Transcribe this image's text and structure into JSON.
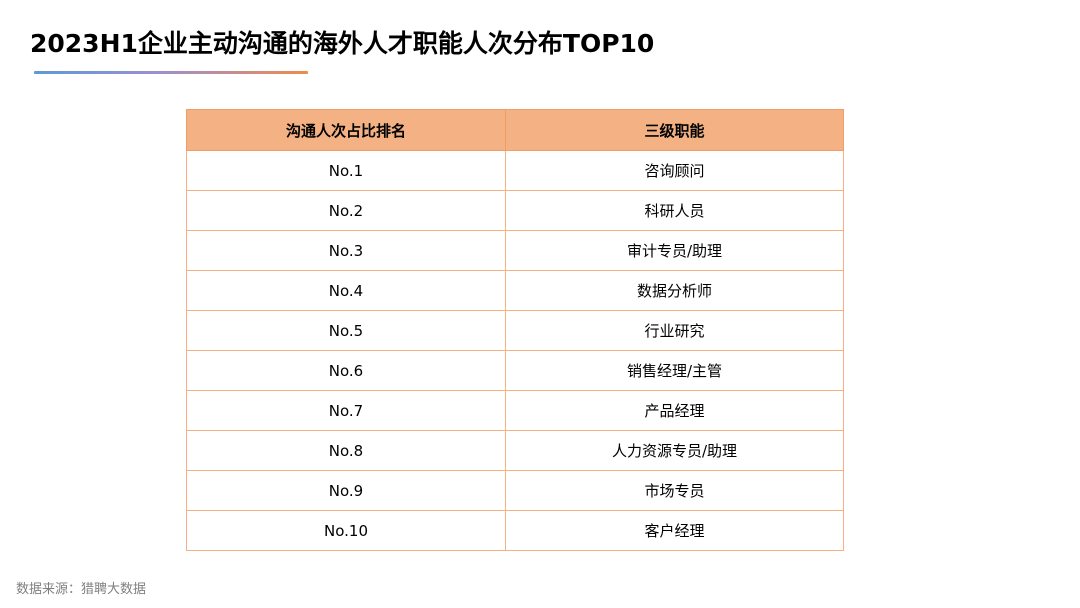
{
  "page": {
    "title": "2023H1企业主动沟通的海外人才职能人次分布TOP10",
    "source": "数据来源：猎聘大数据"
  },
  "colors": {
    "header_fill": "#f4b183",
    "table_border": "#f4b183",
    "underline_gradient": [
      "#5b9bd5",
      "#f08a4b"
    ]
  },
  "table": {
    "headers": [
      "沟通人次占比排名",
      "三级职能"
    ],
    "rows": [
      {
        "rank": "No.1",
        "function": "咨询顾问"
      },
      {
        "rank": "No.2",
        "function": "科研人员"
      },
      {
        "rank": "No.3",
        "function": "审计专员/助理"
      },
      {
        "rank": "No.4",
        "function": "数据分析师"
      },
      {
        "rank": "No.5",
        "function": "行业研究"
      },
      {
        "rank": "No.6",
        "function": "销售经理/主管"
      },
      {
        "rank": "No.7",
        "function": "产品经理"
      },
      {
        "rank": "No.8",
        "function": "人力资源专员/助理"
      },
      {
        "rank": "No.9",
        "function": "市场专员"
      },
      {
        "rank": "No.10",
        "function": "客户经理"
      }
    ]
  }
}
